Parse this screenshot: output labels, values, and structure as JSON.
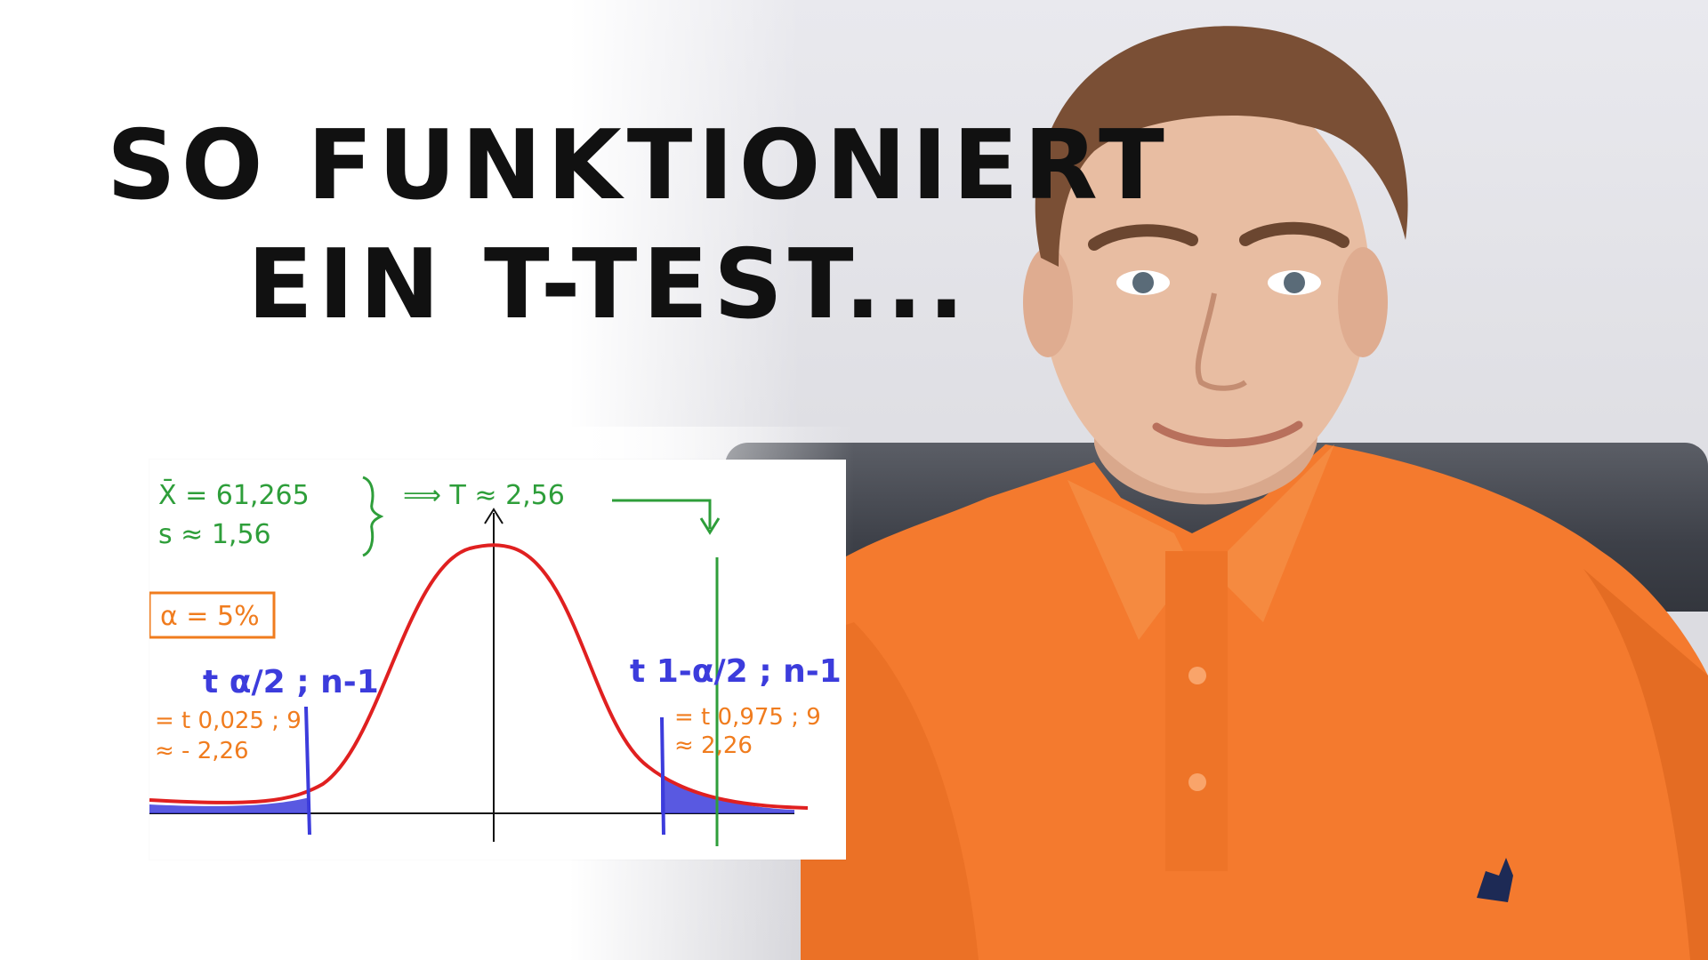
{
  "headline": {
    "line1": "So funktioniert",
    "line2": "ein t-Test..."
  },
  "board": {
    "xbar_label": "X̄ = 61,265",
    "s_label": "s ≈ 1,56",
    "result_label": "⟹ T ≈ 2,56",
    "alpha_label": "α = 5%",
    "left_crit_label": "t α/2 ; n-1",
    "left_crit_value1": "= t 0,025 ; 9",
    "left_crit_value2": "≈ - 2,26",
    "right_crit_label": "t 1-α/2 ; n-1",
    "right_crit_value1": "= t 0,975 ; 9",
    "right_crit_value2": "≈ 2,26"
  },
  "colors": {
    "green": "#2e9e3a",
    "orange": "#f07c1e",
    "blue": "#3c3cdc",
    "red": "#e02020",
    "shirt": "#f47a2e"
  }
}
